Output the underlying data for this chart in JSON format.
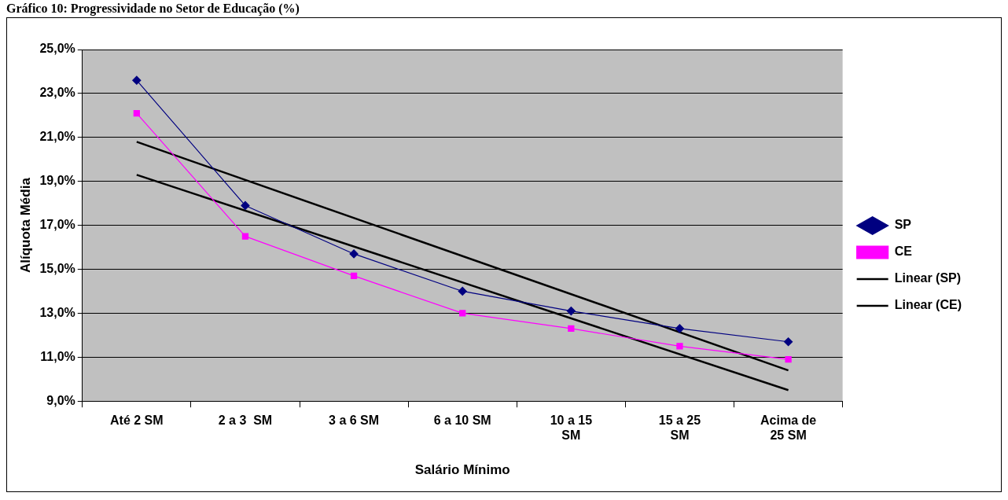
{
  "chart_data": {
    "type": "line",
    "title": "Gráfico 10: Progressividade no Setor de Educação (%)",
    "xlabel": "Salário Mínimo",
    "ylabel": "Alíquota Média",
    "categories": [
      "Até 2 SM",
      "2 a 3  SM",
      "3 a 6 SM",
      "6 a 10 SM",
      "10 a 15 SM",
      "15 a 25 SM",
      "Acima de 25 SM"
    ],
    "series": [
      {
        "name": "SP",
        "color": "#000080",
        "marker": "diamond",
        "values": [
          23.6,
          17.9,
          15.7,
          14.0,
          13.1,
          12.3,
          11.7
        ]
      },
      {
        "name": "CE",
        "color": "#ff00ff",
        "marker": "square",
        "values": [
          22.1,
          16.5,
          14.7,
          13.0,
          12.3,
          11.5,
          10.9
        ]
      },
      {
        "name": "Linear (SP)",
        "color": "#000000",
        "marker": "none",
        "x": [
          "Até 2 SM",
          "Acima de 25 SM"
        ],
        "values": [
          20.8,
          10.4
        ]
      },
      {
        "name": "Linear (CE)",
        "color": "#000000",
        "marker": "none",
        "x": [
          "Até 2 SM",
          "Acima de 25 SM"
        ],
        "values": [
          19.3,
          9.5
        ]
      }
    ],
    "ylim": [
      9,
      25
    ],
    "yticks": [
      {
        "value": 9,
        "label": "9,0%"
      },
      {
        "value": 11,
        "label": "11,0%"
      },
      {
        "value": 13,
        "label": "13,0%"
      },
      {
        "value": 15,
        "label": "15,0%"
      },
      {
        "value": 17,
        "label": "17,0%"
      },
      {
        "value": 19,
        "label": "19,0%"
      },
      {
        "value": 21,
        "label": "21,0%"
      },
      {
        "value": 23,
        "label": "23,0%"
      },
      {
        "value": 25,
        "label": "25,0%"
      }
    ],
    "grid": "y",
    "legend": "right"
  }
}
